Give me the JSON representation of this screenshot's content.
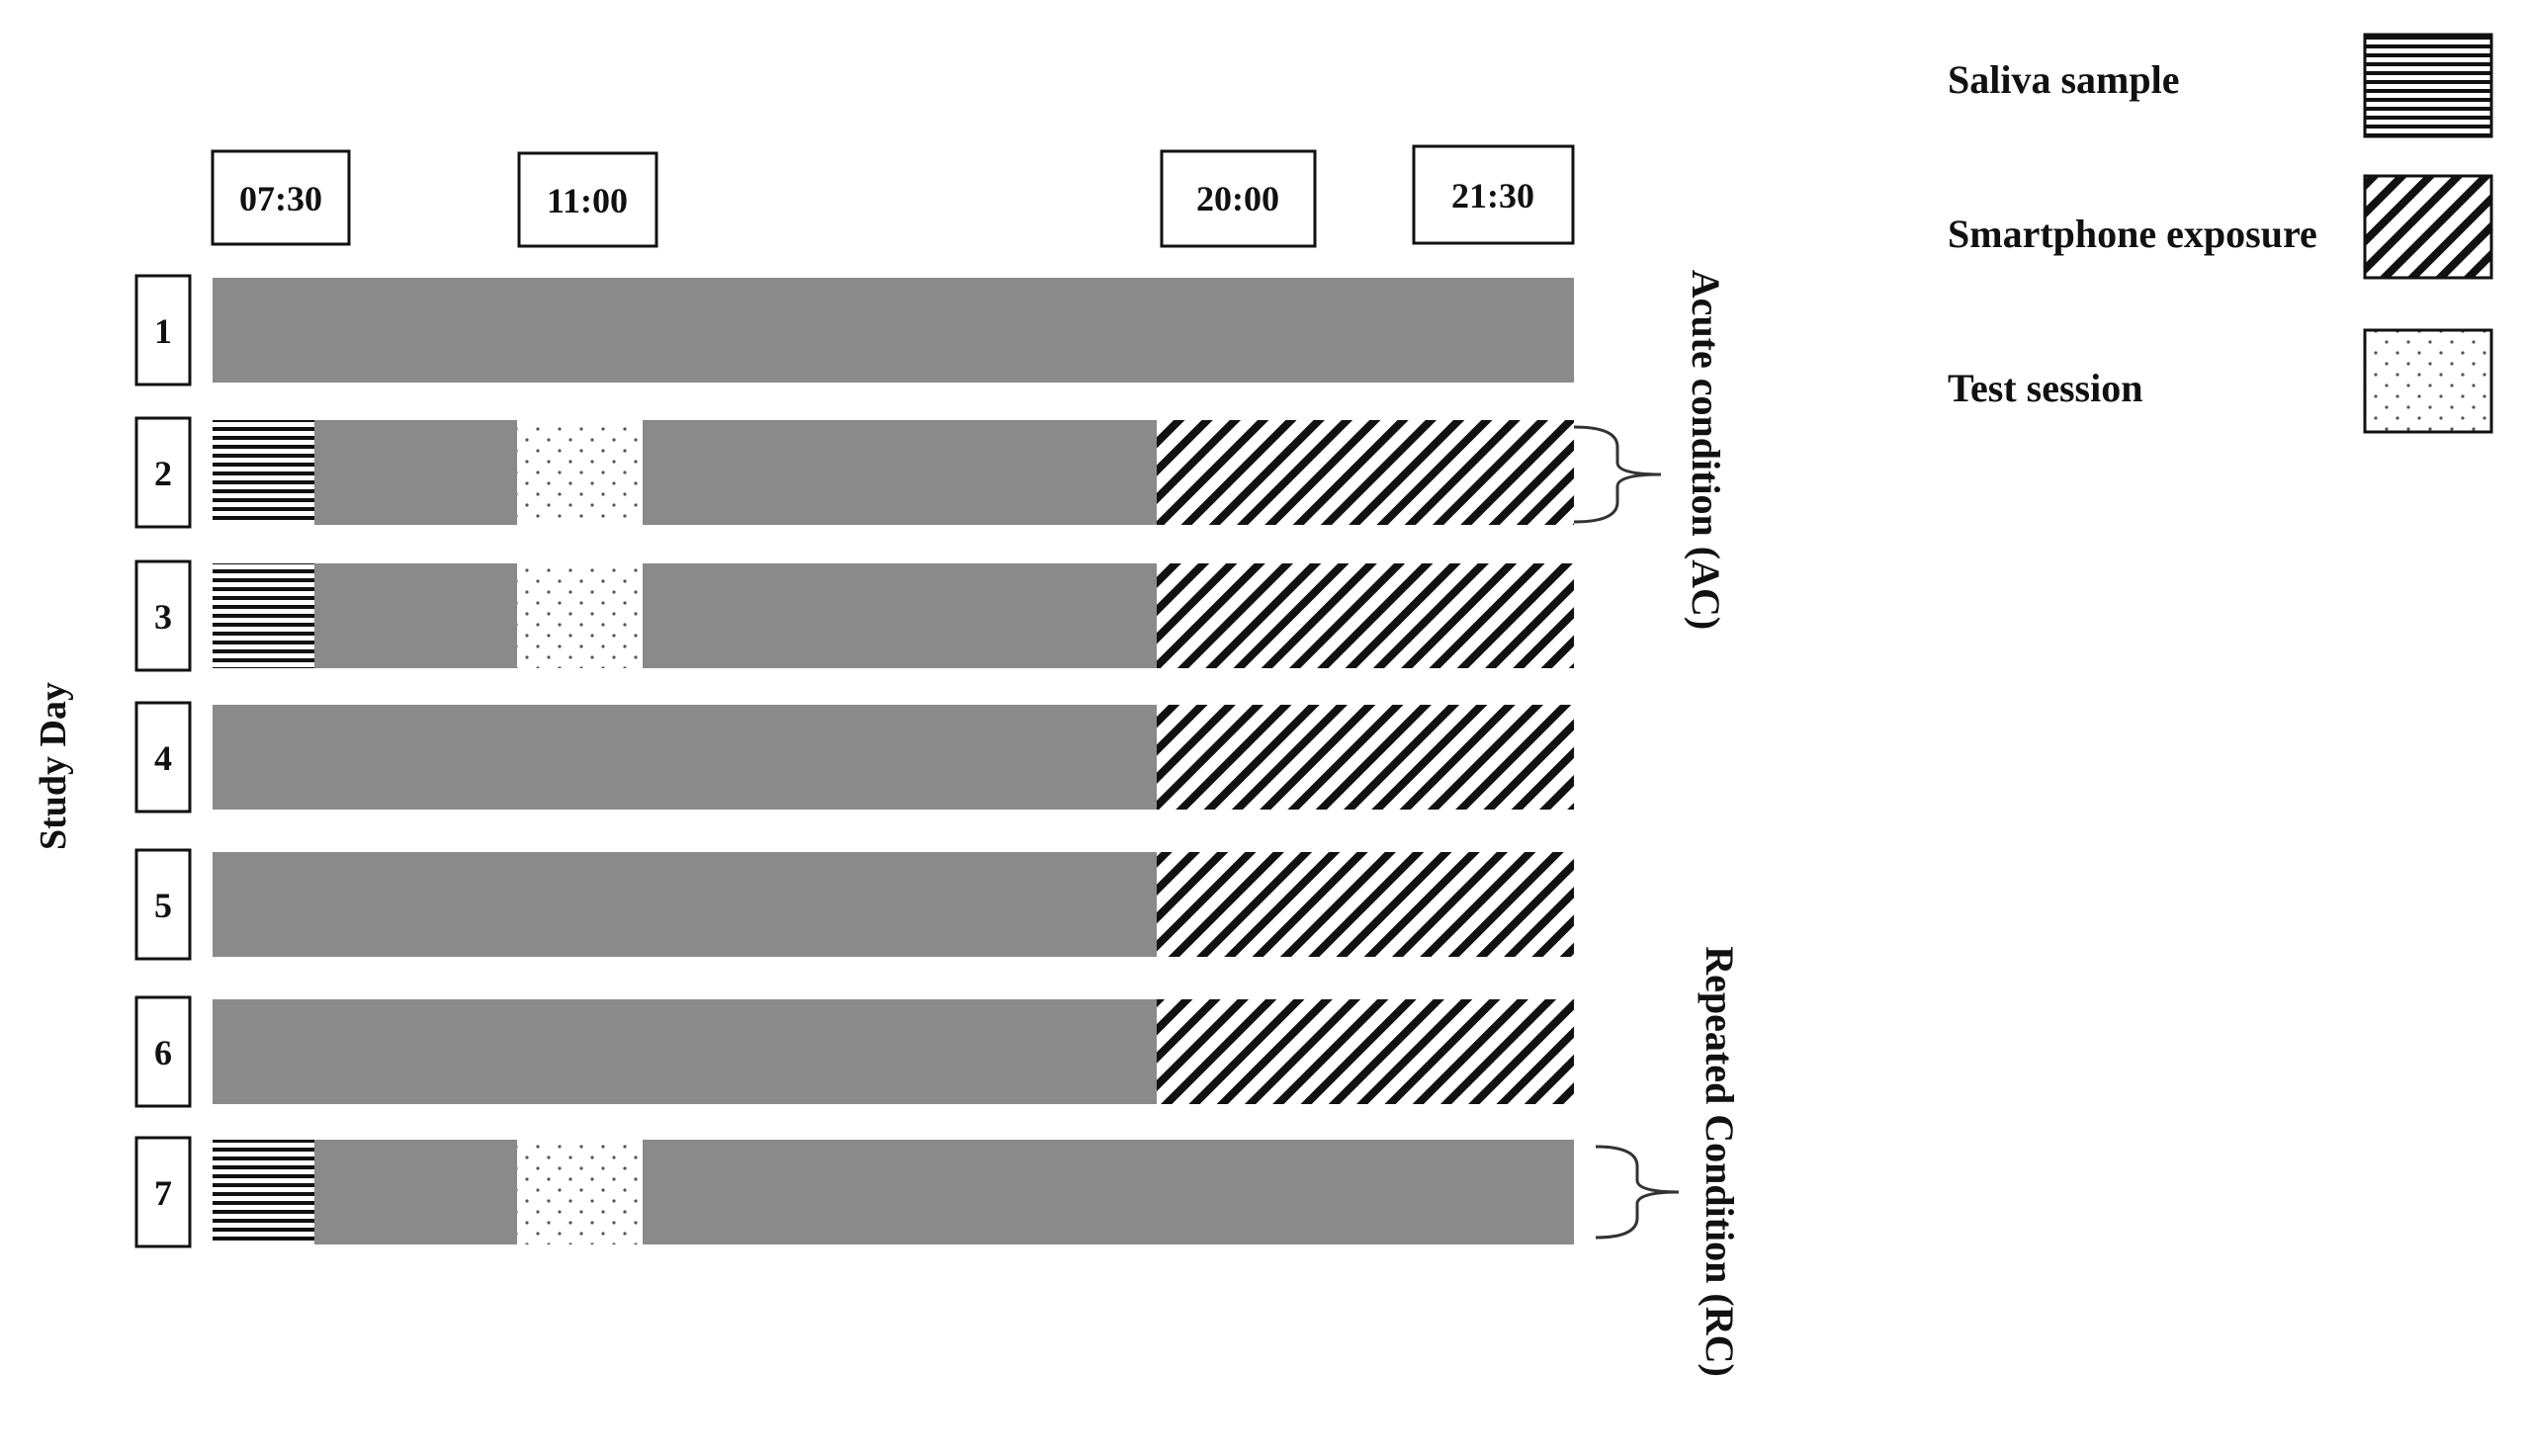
{
  "colors": {
    "bar_gray": "#8a8a8a",
    "ink": "#111111",
    "box_fill": "#ffffff"
  },
  "y_axis_label": "Study Day",
  "time_labels": [
    "07:30",
    "11:00",
    "20:00",
    "21:30"
  ],
  "conditions": {
    "acute": "Acute condition (AC)",
    "repeated": "Repeated Condition (RC)"
  },
  "legend": [
    {
      "label": "Saliva sample",
      "pattern": "horizontal-lines"
    },
    {
      "label": "Smartphone exposure",
      "pattern": "diagonal-hatch"
    },
    {
      "label": "Test session",
      "pattern": "dots"
    }
  ],
  "days": [
    {
      "label": "1",
      "saliva": false,
      "test_session": false,
      "smartphone": false
    },
    {
      "label": "2",
      "saliva": true,
      "test_session": true,
      "smartphone": true
    },
    {
      "label": "3",
      "saliva": true,
      "test_session": true,
      "smartphone": true
    },
    {
      "label": "4",
      "saliva": false,
      "test_session": false,
      "smartphone": true
    },
    {
      "label": "5",
      "saliva": false,
      "test_session": false,
      "smartphone": true
    },
    {
      "label": "6",
      "saliva": false,
      "test_session": false,
      "smartphone": true
    },
    {
      "label": "7",
      "saliva": true,
      "test_session": true,
      "smartphone": false
    }
  ]
}
